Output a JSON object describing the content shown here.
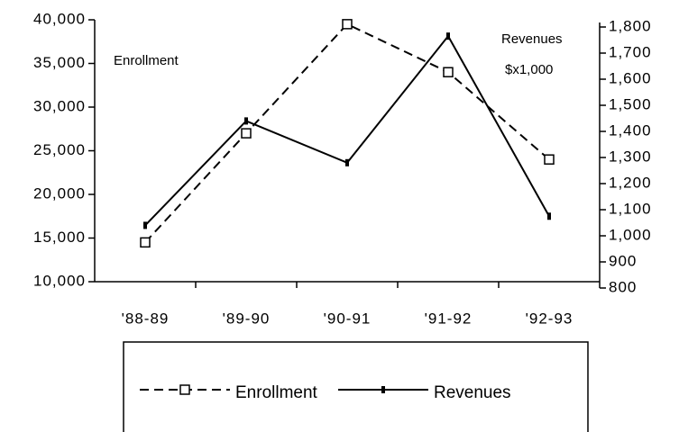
{
  "chart_data": {
    "type": "line",
    "categories": [
      "'88-89",
      "'89-90",
      "'90-91",
      "'91-92",
      "'92-93"
    ],
    "y_label": "Enrollment",
    "y2_label": [
      "Revenues",
      "$x1,000"
    ],
    "series": [
      {
        "name": "Enrollment",
        "color": "#000000",
        "dash": true,
        "marker": "square",
        "values": [
          14500,
          27000,
          39500,
          34000,
          24000
        ]
      },
      {
        "name": "Revenues",
        "color": "#000000",
        "dash": false,
        "marker": "tick",
        "axis": "y2",
        "values": [
          1040,
          1440,
          1280,
          1765,
          1075
        ]
      }
    ],
    "ylim": [
      10000,
      40000
    ],
    "yticks": [
      {
        "value": 10000,
        "label": "10,000"
      },
      {
        "value": 15000,
        "label": "15,000"
      },
      {
        "value": 20000,
        "label": "20,000"
      },
      {
        "value": 25000,
        "label": "25,000"
      },
      {
        "value": 30000,
        "label": "30,000"
      },
      {
        "value": 35000,
        "label": "35,000"
      },
      {
        "value": 40000,
        "label": "40,000"
      }
    ],
    "y2lim": [
      800,
      1800
    ],
    "y2ticks": [
      800,
      900,
      {
        "value": 1000,
        "label": "1,000"
      },
      {
        "value": 1100,
        "label": "1,100"
      },
      {
        "value": 1200,
        "label": "1,200"
      },
      {
        "value": 1300,
        "label": "1,300"
      },
      {
        "value": 1400,
        "label": "1,400"
      },
      {
        "value": 1500,
        "label": "1,500"
      },
      {
        "value": 1600,
        "label": "1,600"
      },
      {
        "value": 1700,
        "label": "1,700"
      },
      {
        "value": 1800,
        "label": "1,800"
      }
    ],
    "grid": false
  }
}
